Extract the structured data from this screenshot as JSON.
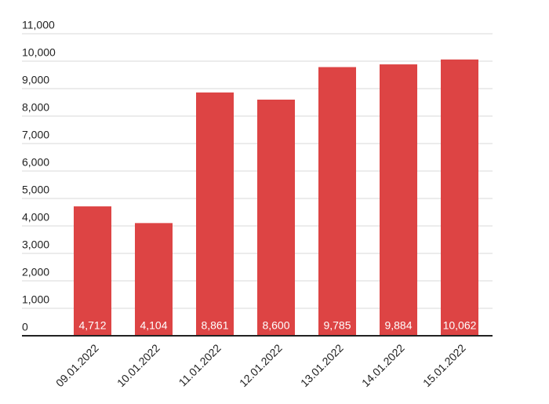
{
  "chart_data": {
    "type": "bar",
    "categories": [
      "09.01.2022",
      "10.01.2022",
      "11.01.2022",
      "12.01.2022",
      "13.01.2022",
      "14.01.2022",
      "15.01.2022"
    ],
    "values": [
      4712,
      4104,
      8861,
      8600,
      9785,
      9884,
      10062
    ],
    "value_labels": [
      "4,712",
      "4,104",
      "8,861",
      "8,600",
      "9,785",
      "9,884",
      "10,062"
    ],
    "color": "#dd4444",
    "ylim": [
      0,
      11000
    ],
    "yticks": [
      0,
      {
        "value": 1000,
        "label": "1,000"
      },
      {
        "value": 2000,
        "label": "2,000"
      },
      {
        "value": 3000,
        "label": "3,000"
      },
      {
        "value": 4000,
        "label": "4,000"
      },
      {
        "value": 5000,
        "label": "5,000"
      },
      {
        "value": 6000,
        "label": "6,000"
      },
      {
        "value": 7000,
        "label": "7,000"
      },
      {
        "value": 8000,
        "label": "8,000"
      },
      {
        "value": 9000,
        "label": "9,000"
      },
      {
        "value": 10000,
        "label": "10,000"
      },
      {
        "value": 11000,
        "label": "11,000"
      }
    ],
    "grid": true
  }
}
